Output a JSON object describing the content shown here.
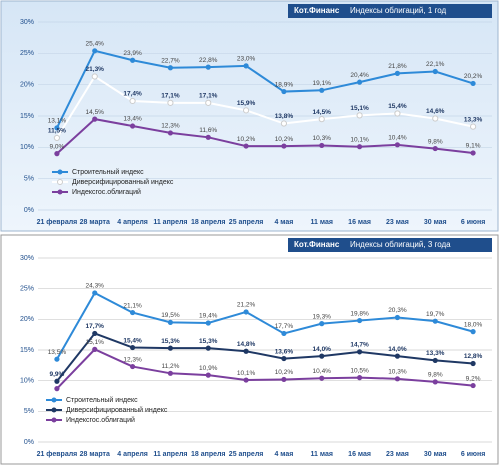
{
  "chart_data": [
    {
      "type": "line",
      "brand": "Кот.Финанс",
      "title": "Индексы облигаций, 1 год",
      "categories": [
        "21 февраля",
        "28 марта",
        "4 апреля",
        "11 апреля",
        "18 апреля",
        "25 апреля",
        "4 мая",
        "11 мая",
        "16 мая",
        "23 мая",
        "30 мая",
        "6 июня"
      ],
      "ylim": [
        0,
        30
      ],
      "yticks": [
        {
          "value": 0,
          "label": "0%"
        },
        {
          "value": 5,
          "label": "5%"
        },
        {
          "value": 10,
          "label": "10%"
        },
        {
          "value": 15,
          "label": "15%"
        },
        {
          "value": 20,
          "label": "20%"
        },
        {
          "value": 25,
          "label": "25%"
        },
        {
          "value": 30,
          "label": "30%"
        }
      ],
      "grid": true,
      "legend": "lower left",
      "series": [
        {
          "name": "Строительный индекс",
          "color": "#2e8ad8",
          "values": [
            13.1,
            25.4,
            23.9,
            22.7,
            22.8,
            23.0,
            18.9,
            19.1,
            20.4,
            21.8,
            22.1,
            20.2
          ],
          "value_labels": [
            "13,1%",
            "25,4%",
            "23,9%",
            "22,7%",
            "22,8%",
            "23,0%",
            "18,9%",
            "19,1%",
            "20,4%",
            "21,8%",
            "22,1%",
            "20,2%"
          ]
        },
        {
          "name": "Диверсифицированный индекс",
          "color": "#ffffff",
          "values": [
            11.5,
            21.3,
            17.4,
            17.1,
            17.1,
            15.9,
            13.8,
            14.5,
            15.1,
            15.4,
            14.6,
            13.3
          ],
          "value_labels": [
            "11,5%",
            "21,3%",
            "17,4%",
            "17,1%",
            "17,1%",
            "15,9%",
            "13,8%",
            "14,5%",
            "15,1%",
            "15,4%",
            "14,6%",
            "13,3%"
          ]
        },
        {
          "name": "Индексгос.облигаций",
          "color": "#7b3f9e",
          "values": [
            9.0,
            14.5,
            13.4,
            12.3,
            11.6,
            10.2,
            10.2,
            10.3,
            10.1,
            10.4,
            9.8,
            9.1
          ],
          "value_labels": [
            "9,0%",
            "14,5%",
            "13,4%",
            "12,3%",
            "11,6%",
            "10,2%",
            "10,2%",
            "10,3%",
            "10,1%",
            "10,4%",
            "9,8%",
            "9,1%"
          ]
        }
      ]
    },
    {
      "type": "line",
      "brand": "Кот.Финанс",
      "title": "Индексы облигаций, 3 года",
      "categories": [
        "21 февраля",
        "28 марта",
        "4 апреля",
        "11 апреля",
        "18 апреля",
        "25 апреля",
        "4 мая",
        "11 мая",
        "16 мая",
        "23 мая",
        "30 мая",
        "6 июня"
      ],
      "ylim": [
        0,
        30
      ],
      "yticks": [
        {
          "value": 0,
          "label": "0%"
        },
        {
          "value": 5,
          "label": "5%"
        },
        {
          "value": 10,
          "label": "10%"
        },
        {
          "value": 15,
          "label": "15%"
        },
        {
          "value": 20,
          "label": "20%"
        },
        {
          "value": 25,
          "label": "25%"
        },
        {
          "value": 30,
          "label": "30%"
        }
      ],
      "grid": true,
      "legend": "lower left",
      "series": [
        {
          "name": "Строительный индекс",
          "color": "#2e8ad8",
          "values": [
            13.5,
            24.3,
            21.1,
            19.5,
            19.4,
            21.2,
            17.7,
            19.3,
            19.8,
            20.3,
            19.7,
            18.0
          ],
          "value_labels": [
            "13,5%",
            "24,3%",
            "21,1%",
            "19,5%",
            "19,4%",
            "21,2%",
            "17,7%",
            "19,3%",
            "19,8%",
            "20,3%",
            "19,7%",
            "18,0%"
          ]
        },
        {
          "name": "Диверсифицированный индекс",
          "color": "#1f3864",
          "values": [
            9.9,
            17.7,
            15.4,
            15.3,
            15.3,
            14.8,
            13.6,
            14.0,
            14.7,
            14.0,
            13.3,
            12.8
          ],
          "value_labels": [
            "9,9%",
            "17,7%",
            "15,4%",
            "15,3%",
            "15,3%",
            "14,8%",
            "13,6%",
            "14,0%",
            "14,7%",
            "14,0%",
            "13,3%",
            "12,8%"
          ]
        },
        {
          "name": "Индексгос.облигаций",
          "color": "#7b3f9e",
          "values": [
            8.7,
            15.1,
            12.3,
            11.2,
            10.9,
            10.1,
            10.2,
            10.4,
            10.5,
            10.3,
            9.8,
            9.2
          ],
          "value_labels": [
            null,
            "15,1%",
            "12,3%",
            "11,2%",
            "10,9%",
            "10,1%",
            "10,2%",
            "10,4%",
            "10,5%",
            "10,3%",
            "9,8%",
            "9,2%"
          ]
        }
      ]
    }
  ]
}
